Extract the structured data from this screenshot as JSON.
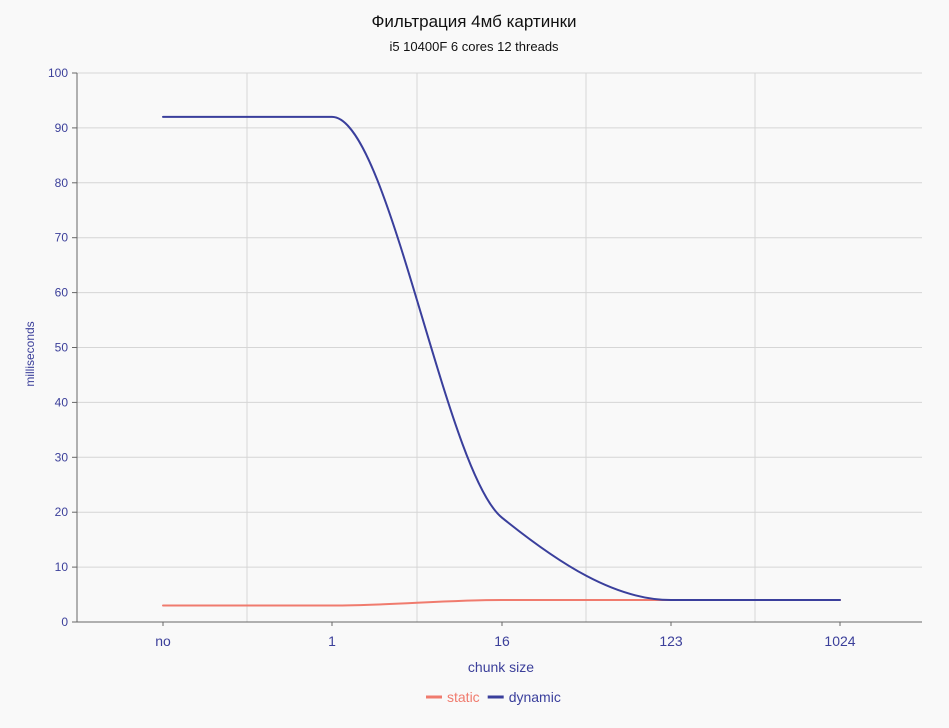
{
  "chart_data": {
    "type": "line",
    "title": "Фильтрация 4мб картинки",
    "subtitle": "i5 10400F 6 cores 12 threads",
    "xlabel": "chunk size",
    "ylabel": "milliseconds",
    "categories": [
      "no",
      "1",
      "16",
      "123",
      "1024"
    ],
    "ylim": [
      0,
      100
    ],
    "yticks": [
      0,
      10,
      20,
      30,
      40,
      50,
      60,
      70,
      80,
      90,
      100
    ],
    "grid": true,
    "legend_position": "bottom-center",
    "series": [
      {
        "name": "static",
        "color": "#f07b6e",
        "values": [
          3,
          3,
          4,
          4,
          4
        ]
      },
      {
        "name": "dynamic",
        "color": "#3a3f9c",
        "values": [
          92,
          92,
          19,
          4,
          4
        ]
      }
    ]
  },
  "colors": {
    "background": "#f9f9f9",
    "grid": "#d6d6d6",
    "axis": "#666666",
    "text_accent": "#3b3f9a"
  }
}
